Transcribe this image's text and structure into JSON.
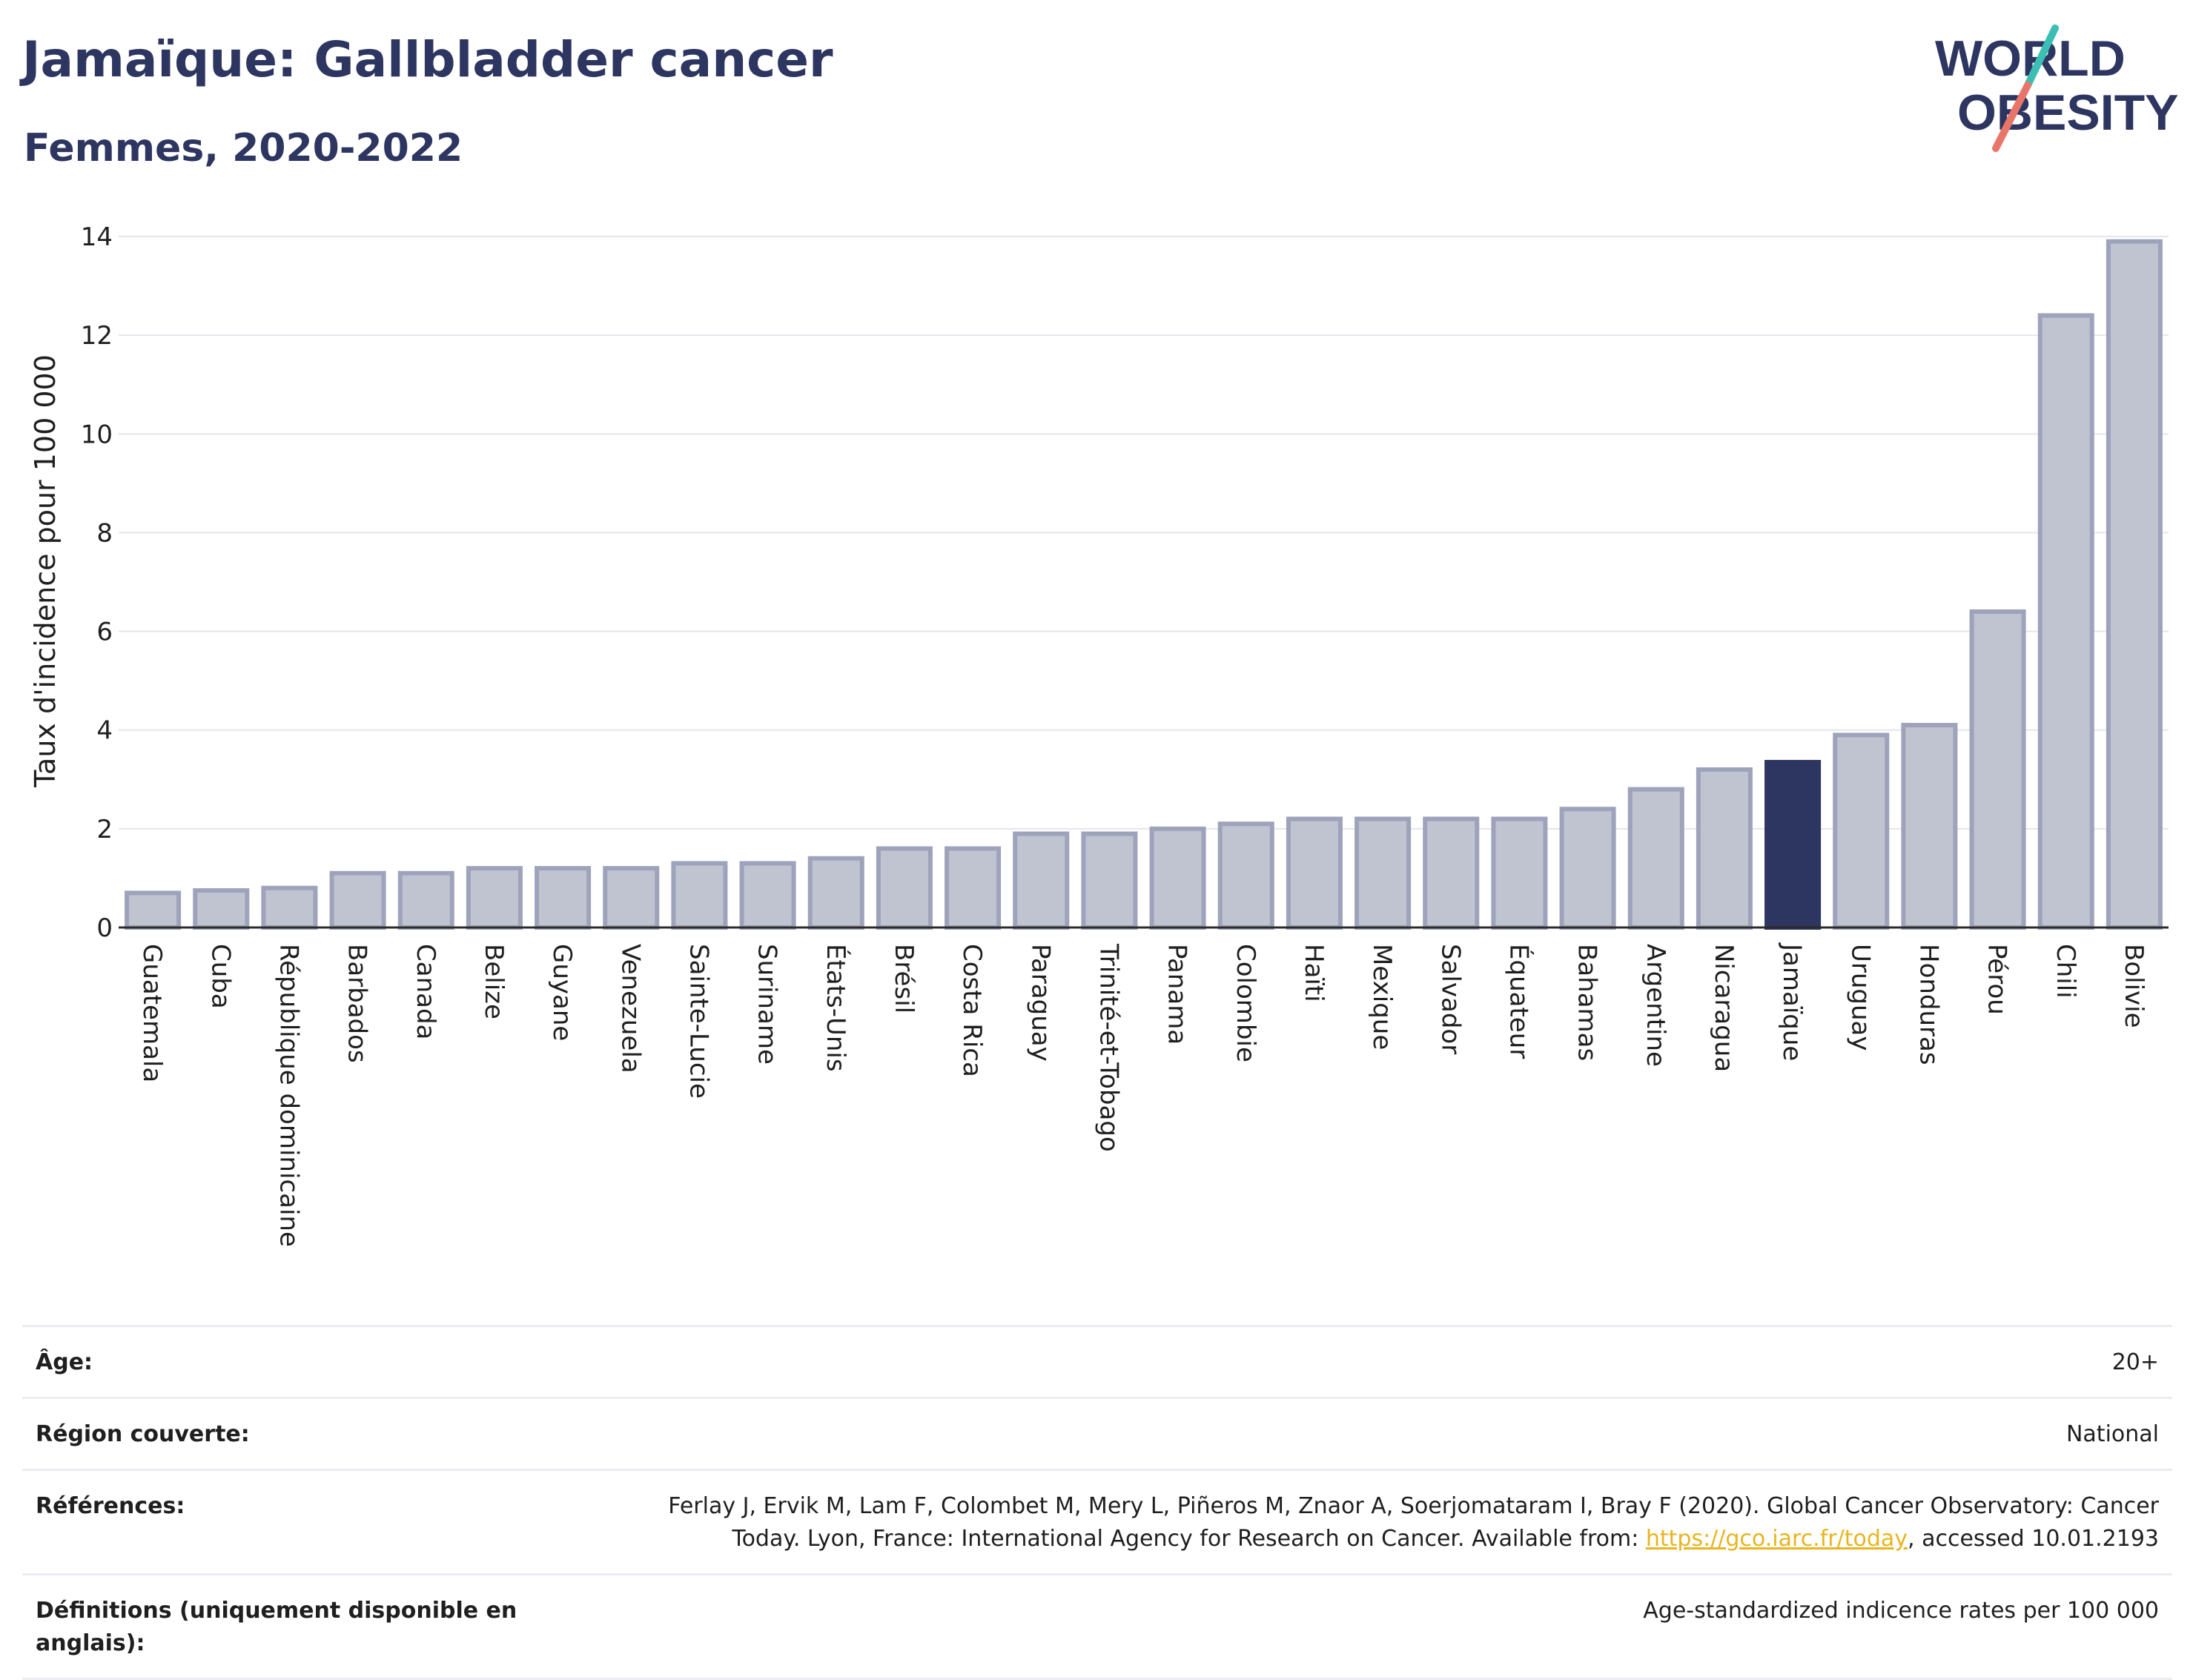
{
  "header": {
    "title": "Jamaïque: Gallbladder cancer",
    "subtitle": "Femmes, 2020-2022"
  },
  "logo": {
    "line1": "WORLD",
    "line2": "OBESITY",
    "colors": {
      "text": "#2d3561",
      "slash_teal": "#3bbfb5",
      "slash_coral": "#e8756a"
    }
  },
  "chart_data": {
    "type": "bar",
    "ylabel": "Taux d'incidence pour 100 000",
    "xlabel": "",
    "ylim": [
      0,
      14
    ],
    "yticks": [
      0,
      2,
      4,
      6,
      8,
      10,
      12,
      14
    ],
    "grid": true,
    "highlight": "Jamaïque",
    "colors": {
      "bar": "#c0c3d0",
      "bar_edge": "#9ea3bb",
      "highlight": "#2d3561",
      "grid": "#e5e5ec"
    },
    "categories": [
      "Guatemala",
      "Cuba",
      "République dominicaine",
      "Barbados",
      "Canada",
      "Belize",
      "Guyane",
      "Venezuela",
      "Sainte-Lucie",
      "Suriname",
      "États-Unis",
      "Brésil",
      "Costa Rica",
      "Paraguay",
      "Trinité-et-Tobago",
      "Panama",
      "Colombie",
      "Haïti",
      "Mexique",
      "Salvador",
      "Équateur",
      "Bahamas",
      "Argentine",
      "Nicaragua",
      "Jamaïque",
      "Uruguay",
      "Honduras",
      "Pérou",
      "Chili",
      "Bolivie"
    ],
    "values": [
      0.7,
      0.75,
      0.8,
      1.1,
      1.1,
      1.2,
      1.2,
      1.2,
      1.3,
      1.3,
      1.4,
      1.6,
      1.6,
      1.9,
      1.9,
      2.0,
      2.1,
      2.2,
      2.2,
      2.2,
      2.2,
      2.4,
      2.8,
      3.2,
      3.35,
      3.9,
      4.1,
      6.4,
      12.4,
      13.9
    ]
  },
  "info": {
    "age_label": "Âge:",
    "age_value": "20+",
    "region_label": "Région couverte:",
    "region_value": "National",
    "refs_label": "Références:",
    "refs_line1": "Ferlay J, Ervik M, Lam F, Colombet M, Mery L, Piñeros M, Znaor A, Soerjomataram I, Bray F (2020). Global Cancer Observatory: Cancer",
    "refs_line2_pre": "Today. Lyon, France: International Agency for Research on Cancer. Available from: ",
    "refs_link": "https://gco.iarc.fr/today",
    "refs_line2_post": ", accessed 10.01.2193",
    "defs_label": "Définitions (uniquement disponible en anglais):",
    "defs_value": "Age-standardized indicence rates per 100 000"
  }
}
